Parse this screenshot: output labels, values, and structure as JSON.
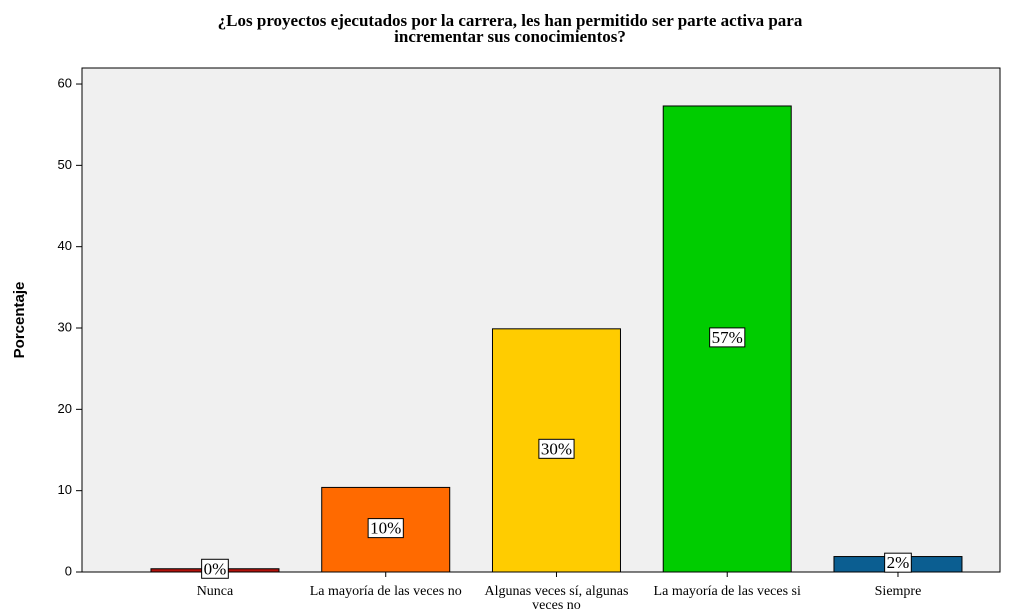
{
  "chart_data": {
    "type": "bar",
    "title": [
      "¿Los proyectos ejecutados por la carrera, les han permitido ser parte activa para",
      "incrementar sus conocimientos?"
    ],
    "ylabel": "Porcentaje",
    "categories": [
      "Nunca",
      "La mayoría de las veces no",
      "Algunas veces sí, algunas veces no",
      "La mayoría de las veces si",
      "Siempre"
    ],
    "values": [
      0.4,
      10.4,
      29.9,
      57.3,
      1.9
    ],
    "value_labels": [
      "0%",
      "10%",
      "30%",
      "57%",
      "2%"
    ],
    "colors": [
      "#b3120c",
      "#ff6a00",
      "#ffcc00",
      "#00cc00",
      "#0b5e91"
    ],
    "ylim": [
      0,
      62
    ],
    "yticks": [
      0,
      10,
      20,
      30,
      40,
      50,
      60
    ]
  }
}
